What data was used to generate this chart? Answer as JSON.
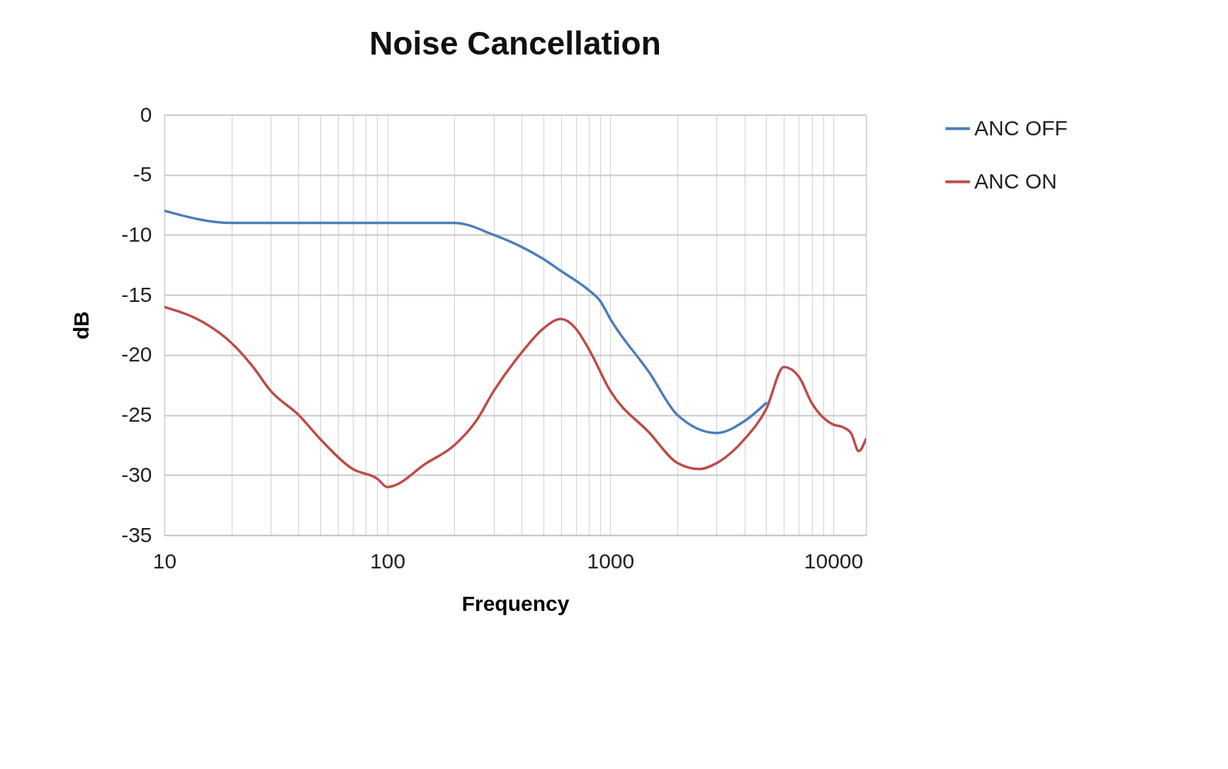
{
  "chart_data": {
    "type": "line",
    "title": "Noise Cancellation",
    "xlabel": "Frequency",
    "ylabel": "dB",
    "log": "x",
    "grid": true,
    "legend": "right",
    "xlim": [
      10,
      14000
    ],
    "ylim": [
      -35,
      0
    ],
    "xticks": [
      10,
      {
        "value": 20,
        "label": null
      },
      {
        "value": 30,
        "label": null
      },
      {
        "value": 40,
        "label": null
      },
      {
        "value": 50,
        "label": null
      },
      {
        "value": 60,
        "label": null
      },
      {
        "value": 70,
        "label": null
      },
      {
        "value": 80,
        "label": null
      },
      {
        "value": 90,
        "label": null
      },
      100,
      {
        "value": 200,
        "label": null
      },
      {
        "value": 300,
        "label": null
      },
      {
        "value": 400,
        "label": null
      },
      {
        "value": 500,
        "label": null
      },
      {
        "value": 600,
        "label": null
      },
      {
        "value": 700,
        "label": null
      },
      {
        "value": 800,
        "label": null
      },
      {
        "value": 900,
        "label": null
      },
      1000,
      {
        "value": 2000,
        "label": null
      },
      {
        "value": 3000,
        "label": null
      },
      {
        "value": 4000,
        "label": null
      },
      {
        "value": 5000,
        "label": null
      },
      {
        "value": 6000,
        "label": null
      },
      {
        "value": 7000,
        "label": null
      },
      {
        "value": 8000,
        "label": null
      },
      {
        "value": 9000,
        "label": null
      },
      10000
    ],
    "yticks": [
      -35,
      -30,
      -25,
      -20,
      -15,
      -10,
      -5,
      0
    ],
    "series": [
      {
        "name": "ANC OFF",
        "color": "#4a7ebb",
        "x": [
          10,
          20,
          30,
          100,
          200,
          300,
          400,
          500,
          600,
          800,
          900,
          1000,
          1500,
          2000,
          3000,
          4000,
          5000
        ],
        "values": [
          -8,
          -9,
          -9,
          -9,
          -9,
          -10,
          -11,
          -12,
          -13,
          -14.6,
          -15.5,
          -17,
          -21.5,
          -25,
          -26.5,
          -25.5,
          -24
        ]
      },
      {
        "name": "ANC ON",
        "color": "#be4b48",
        "x": [
          10,
          15,
          20,
          25,
          30,
          40,
          50,
          70,
          90,
          100,
          150,
          200,
          250,
          300,
          400,
          500,
          600,
          700,
          800,
          1000,
          1500,
          2000,
          2500,
          3000,
          4000,
          5000,
          6000,
          7000,
          8000,
          10000,
          11000,
          12000,
          13000,
          14000
        ],
        "values": [
          -16,
          -17.3,
          -19,
          -21,
          -23,
          -25,
          -27,
          -29.5,
          -30.3,
          -31,
          -29,
          -27.5,
          -25.5,
          -23,
          -19.8,
          -17.8,
          -17,
          -17.8,
          -19.5,
          -23,
          -26.5,
          -29,
          -29.5,
          -29,
          -27,
          -24.5,
          -21,
          -21.8,
          -24,
          -25.8,
          -26,
          -26.5,
          -28,
          -27
        ]
      }
    ]
  }
}
